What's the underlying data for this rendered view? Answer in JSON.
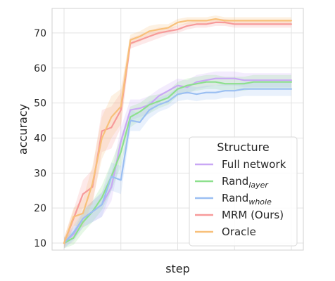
{
  "chart_data": {
    "type": "line",
    "title": "",
    "xlabel": "step",
    "ylabel": "accuracy",
    "ylim": [
      8,
      77
    ],
    "yticks": [
      10,
      20,
      30,
      40,
      50,
      60,
      70
    ],
    "x_tick_count": 5,
    "grid": true,
    "legend": {
      "title": "Structure",
      "position": "lower-right"
    },
    "x": [
      0,
      1,
      2,
      3,
      4,
      5,
      6,
      7,
      8,
      9,
      10,
      11,
      12,
      13,
      14,
      15,
      16,
      17,
      18,
      19,
      20,
      21,
      22,
      23,
      24
    ],
    "series": [
      {
        "name": "Full network",
        "name_sub": "",
        "color": "#c9a7f5",
        "values": [
          10.0,
          12.5,
          17.0,
          19.0,
          21.0,
          26.0,
          39.0,
          48.0,
          48.5,
          49.5,
          52.0,
          53.5,
          55.0,
          54.5,
          56.0,
          56.5,
          57.0,
          57.0,
          57.0,
          56.5,
          56.5,
          56.5,
          56.5,
          56.5,
          56.5
        ],
        "band": [
          1.5,
          2.0,
          2.5,
          3.0,
          3.5,
          4.0,
          4.0,
          3.0,
          2.5,
          2.5,
          2.0,
          2.0,
          2.0,
          2.0,
          2.0,
          2.0,
          2.0,
          2.0,
          2.0,
          2.0,
          2.0,
          2.0,
          2.0,
          2.0,
          2.0
        ]
      },
      {
        "name": "Rand",
        "name_sub": "layer",
        "color": "#8de08d",
        "values": [
          10.0,
          11.5,
          16.0,
          19.0,
          23.0,
          29.0,
          36.0,
          46.0,
          47.5,
          49.5,
          50.5,
          51.5,
          54.0,
          55.0,
          55.5,
          56.0,
          56.0,
          55.5,
          55.5,
          55.5,
          56.0,
          56.0,
          56.0,
          56.0,
          56.0
        ],
        "band": [
          1.5,
          2.0,
          3.0,
          3.0,
          3.5,
          4.0,
          4.0,
          3.0,
          2.5,
          2.5,
          2.0,
          2.0,
          2.0,
          2.0,
          2.0,
          2.0,
          2.0,
          2.0,
          2.0,
          2.0,
          2.0,
          2.0,
          2.0,
          2.0,
          2.0
        ]
      },
      {
        "name": "Rand",
        "name_sub": "whole",
        "color": "#9bbff2",
        "values": [
          10.0,
          13.0,
          17.0,
          19.0,
          21.0,
          29.0,
          28.0,
          45.0,
          44.5,
          48.0,
          49.5,
          50.5,
          52.5,
          53.0,
          52.5,
          53.0,
          53.0,
          53.5,
          53.5,
          54.0,
          54.0,
          54.0,
          54.0,
          54.0,
          54.0
        ],
        "band": [
          1.5,
          2.0,
          2.5,
          3.0,
          3.5,
          4.0,
          4.0,
          3.0,
          2.5,
          2.5,
          2.0,
          2.0,
          2.0,
          2.0,
          2.0,
          2.0,
          2.0,
          2.0,
          2.0,
          2.0,
          2.0,
          2.0,
          2.0,
          2.0,
          2.0
        ]
      },
      {
        "name": "MRM (Ours)",
        "name_sub": "",
        "color": "#f79a9a",
        "values": [
          10.0,
          17.0,
          24.0,
          26.0,
          42.0,
          43.0,
          48.0,
          67.0,
          68.0,
          69.0,
          70.0,
          70.5,
          71.0,
          72.0,
          72.5,
          72.5,
          73.0,
          73.0,
          72.5,
          72.5,
          72.5,
          72.5,
          72.5,
          72.5,
          72.5
        ],
        "band": [
          1.5,
          2.5,
          4.0,
          5.0,
          6.0,
          6.0,
          5.0,
          1.5,
          1.5,
          1.5,
          1.5,
          1.0,
          1.0,
          1.0,
          1.0,
          1.0,
          1.0,
          1.0,
          1.0,
          1.0,
          1.0,
          1.0,
          1.0,
          1.0,
          1.0
        ]
      },
      {
        "name": "Oracle",
        "name_sub": "",
        "color": "#f8c07a",
        "values": [
          10.0,
          17.5,
          18.5,
          27.0,
          40.0,
          46.0,
          49.0,
          68.0,
          69.0,
          70.5,
          71.0,
          71.5,
          73.0,
          73.5,
          73.5,
          73.5,
          74.0,
          73.5,
          73.5,
          73.5,
          73.5,
          73.5,
          73.5,
          73.5,
          73.5
        ],
        "band": [
          1.5,
          2.5,
          4.0,
          5.0,
          6.0,
          6.0,
          5.0,
          1.5,
          1.5,
          1.5,
          1.5,
          1.0,
          1.0,
          1.0,
          1.0,
          1.0,
          1.0,
          1.0,
          1.0,
          1.0,
          1.0,
          1.0,
          1.0,
          1.0,
          1.0
        ]
      }
    ]
  }
}
